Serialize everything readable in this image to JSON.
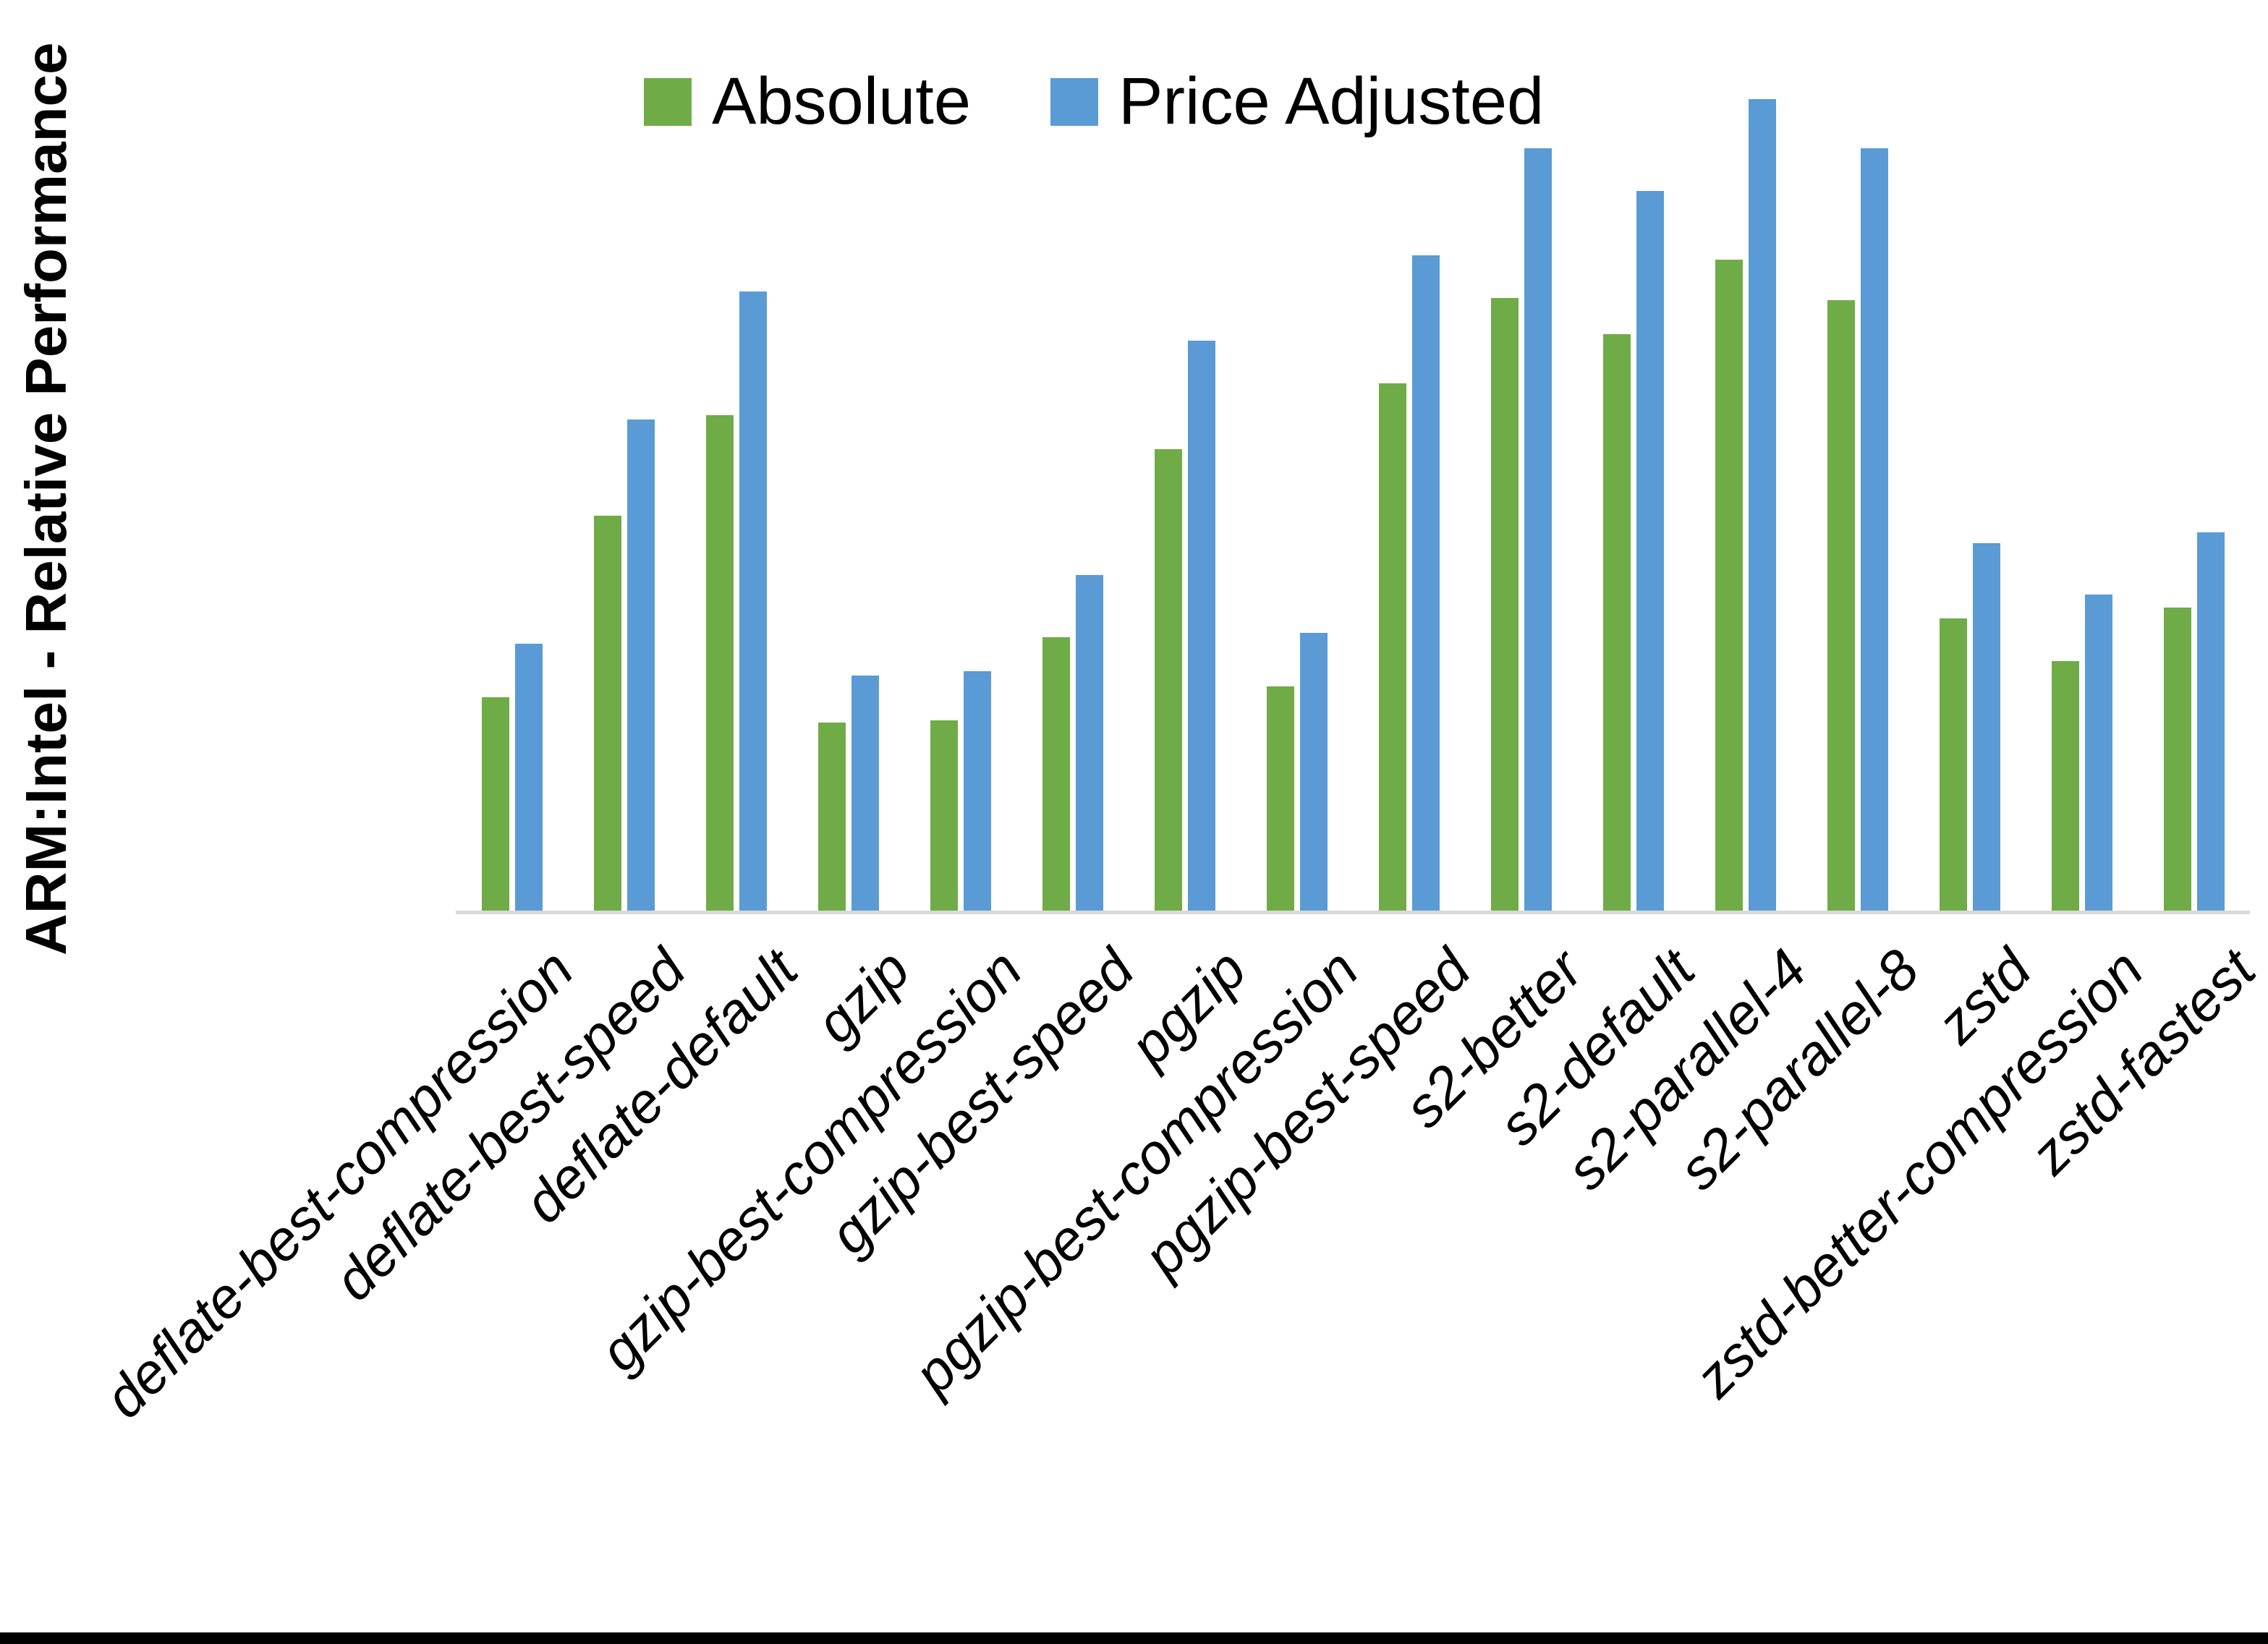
{
  "figure": {
    "y_axis_title": "ARM:Intel - Relative Performance"
  },
  "legend": {
    "items": [
      {
        "label": "Absolute",
        "color": "#6FAC47"
      },
      {
        "label": "Price Adjusted",
        "color": "#5B9BD5"
      }
    ]
  },
  "colors": {
    "absolute_green": "#6FAC47",
    "price_adjusted_blue": "#5B9BD5",
    "axis_line_gray": "#D9D9D9",
    "text_black": "#000000"
  },
  "chart_data": {
    "type": "bar",
    "title": "",
    "xlabel": "",
    "ylabel": "ARM:Intel - Relative Performance",
    "ylim": [
      0.0,
      4.0
    ],
    "ytick_labels": [
      "0.0",
      "0.5",
      "1.0",
      "1.5",
      "2.0",
      "2.5",
      "3.0",
      "3.5",
      "4.0"
    ],
    "grid": false,
    "legend_position": "top-center",
    "categories": [
      "deflate-best-compression",
      "deflate-best-speed",
      "deflate-default",
      "gzip",
      "gzip-best-compression",
      "gzip-best-speed",
      "pgzip",
      "pgzip-best-compression",
      "pgzip-best-speed",
      "s2-better",
      "s2-default",
      "s2-parallel-4",
      "s2-parallel-8",
      "zstd",
      "zstd-better-compression",
      "zstd-fastest"
    ],
    "series": [
      {
        "name": "Absolute",
        "color": "#6FAC47",
        "values": [
          1.0,
          1.85,
          2.32,
          0.88,
          0.89,
          1.28,
          2.16,
          1.05,
          2.47,
          2.87,
          2.7,
          3.05,
          2.86,
          1.37,
          1.17,
          1.42
        ]
      },
      {
        "name": "Price Adjusted",
        "color": "#5B9BD5",
        "values": [
          1.25,
          2.3,
          2.9,
          1.1,
          1.12,
          1.57,
          2.67,
          1.3,
          3.07,
          3.57,
          3.37,
          3.8,
          3.57,
          1.72,
          1.48,
          1.77
        ]
      }
    ]
  }
}
